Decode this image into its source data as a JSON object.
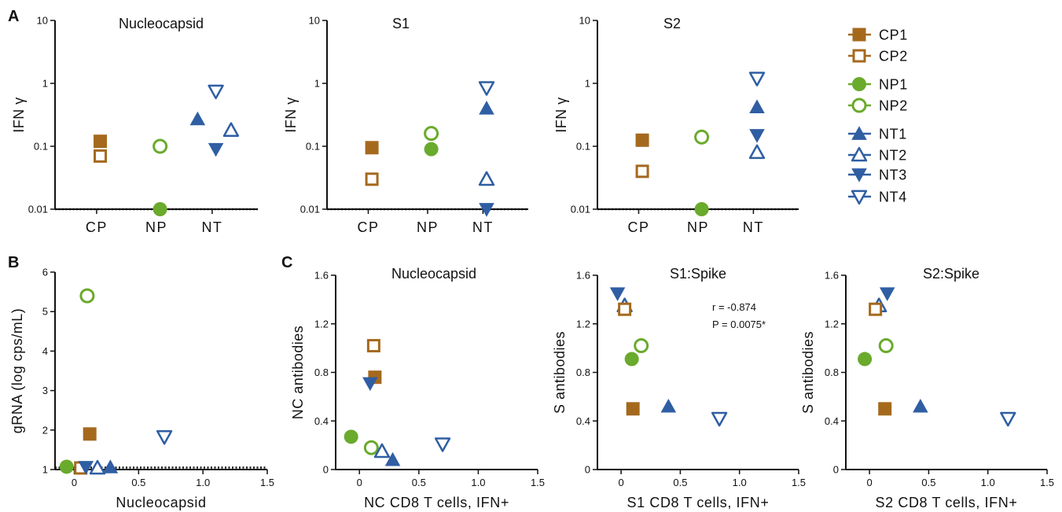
{
  "colors": {
    "CP": "#a5691e",
    "NP": "#6aaa2c",
    "NT": "#2f5ea3",
    "axis": "#111111"
  },
  "panel_letters": [
    "A",
    "B",
    "C"
  ],
  "legend": [
    {
      "label": "CP1",
      "group": "CP",
      "marker": "square",
      "filled": true
    },
    {
      "label": "CP2",
      "group": "CP",
      "marker": "square",
      "filled": false
    },
    {
      "label": "NP1",
      "group": "NP",
      "marker": "circle",
      "filled": true
    },
    {
      "label": "NP2",
      "group": "NP",
      "marker": "circle",
      "filled": false
    },
    {
      "label": "NT1",
      "group": "NT",
      "marker": "triangle-up",
      "filled": true
    },
    {
      "label": "NT2",
      "group": "NT",
      "marker": "triangle-up",
      "filled": false
    },
    {
      "label": "NT3",
      "group": "NT",
      "marker": "triangle-down",
      "filled": true
    },
    {
      "label": "NT4",
      "group": "NT",
      "marker": "triangle-down",
      "filled": false
    }
  ],
  "chart_data": [
    {
      "panel": "A",
      "type": "scatter",
      "title": "Nucleocapsid",
      "ylabel": "IFN γ",
      "yscale": "log",
      "ylim": [
        0.01,
        10
      ],
      "yticks": [
        "0.01",
        "0.1",
        "1",
        "10"
      ],
      "categories": [
        "CP",
        "NP",
        "NT"
      ],
      "threshold": 0.01,
      "points": [
        {
          "id": "CP1",
          "x": 0.06,
          "y": 0.12
        },
        {
          "id": "CP2",
          "x": 0.06,
          "y": 0.07
        },
        {
          "id": "NP2",
          "x": 1.06,
          "y": 0.1
        },
        {
          "id": "NP1",
          "x": 1.06,
          "y": 0.01
        },
        {
          "id": "NT1",
          "x": 1.76,
          "y": 0.27
        },
        {
          "id": "NT4",
          "x": 2.06,
          "y": 0.75
        },
        {
          "id": "NT2",
          "x": 2.31,
          "y": 0.18
        },
        {
          "id": "NT3",
          "x": 2.06,
          "y": 0.09
        }
      ]
    },
    {
      "panel": "A",
      "type": "scatter",
      "title": "S1",
      "ylabel": "IFN γ",
      "yscale": "log",
      "ylim": [
        0.01,
        10
      ],
      "yticks": [
        "0.01",
        "0.1",
        "1",
        "10"
      ],
      "categories": [
        "CP",
        "NP",
        "NT"
      ],
      "threshold": 0.01,
      "points": [
        {
          "id": "CP1",
          "x": 0.06,
          "y": 0.095
        },
        {
          "id": "CP2",
          "x": 0.06,
          "y": 0.03
        },
        {
          "id": "NP2",
          "x": 1.06,
          "y": 0.16
        },
        {
          "id": "NP1",
          "x": 1.06,
          "y": 0.09
        },
        {
          "id": "NT4",
          "x": 2.06,
          "y": 0.85
        },
        {
          "id": "NT1",
          "x": 2.06,
          "y": 0.4
        },
        {
          "id": "NT2",
          "x": 2.06,
          "y": 0.03
        },
        {
          "id": "NT3",
          "x": 2.06,
          "y": 0.01
        }
      ]
    },
    {
      "panel": "A",
      "type": "scatter",
      "title": "S2",
      "ylabel": "IFN γ",
      "yscale": "log",
      "ylim": [
        0.01,
        10
      ],
      "yticks": [
        "0.01",
        "0.1",
        "1",
        "10"
      ],
      "categories": [
        "CP",
        "NP",
        "NT"
      ],
      "threshold": 0.01,
      "points": [
        {
          "id": "CP1",
          "x": 0.06,
          "y": 0.125
        },
        {
          "id": "CP2",
          "x": 0.06,
          "y": 0.04
        },
        {
          "id": "NP2",
          "x": 1.06,
          "y": 0.14
        },
        {
          "id": "NP1",
          "x": 1.06,
          "y": 0.01
        },
        {
          "id": "NT4",
          "x": 2.06,
          "y": 1.2
        },
        {
          "id": "NT1",
          "x": 2.06,
          "y": 0.42
        },
        {
          "id": "NT3",
          "x": 2.06,
          "y": 0.15
        },
        {
          "id": "NT2",
          "x": 2.06,
          "y": 0.08
        }
      ]
    },
    {
      "panel": "B",
      "type": "scatter",
      "title": "",
      "xlabel": "Nucleocapsid",
      "ylabel": "gRNA (log cps/mL)",
      "xlim": [
        -0.15,
        1.5
      ],
      "ylim": [
        1,
        6
      ],
      "xticks": [
        "0",
        "0.5",
        "1.0",
        "1.5"
      ],
      "yticks": [
        "1",
        "2",
        "3",
        "4",
        "5",
        "6"
      ],
      "threshold": 1.05,
      "points": [
        {
          "id": "NP2",
          "x": 0.1,
          "y": 5.4
        },
        {
          "id": "CP1",
          "x": 0.12,
          "y": 1.9
        },
        {
          "id": "NT4",
          "x": 0.7,
          "y": 1.83
        },
        {
          "id": "NP1",
          "x": -0.06,
          "y": 1.07
        },
        {
          "id": "CP2",
          "x": 0.05,
          "y": 1.04
        },
        {
          "id": "NT3",
          "x": 0.09,
          "y": 1.06
        },
        {
          "id": "NT2",
          "x": 0.18,
          "y": 1.04
        },
        {
          "id": "NT1",
          "x": 0.28,
          "y": 1.06
        }
      ]
    },
    {
      "panel": "C",
      "type": "scatter",
      "title": "Nucleocapsid",
      "xlabel": "NC CD8 T cells, IFN+",
      "ylabel": "NC antibodies",
      "xlim": [
        -0.2,
        1.5
      ],
      "ylim": [
        0,
        1.6
      ],
      "xticks": [
        "0",
        "0.5",
        "1.0",
        "1.5"
      ],
      "yticks": [
        "0",
        "0.4",
        "0.8",
        "1.2",
        "1.6"
      ],
      "points": [
        {
          "id": "CP2",
          "x": 0.12,
          "y": 1.02
        },
        {
          "id": "CP1",
          "x": 0.13,
          "y": 0.76
        },
        {
          "id": "NT3",
          "x": 0.09,
          "y": 0.71
        },
        {
          "id": "NP1",
          "x": -0.07,
          "y": 0.27
        },
        {
          "id": "NP2",
          "x": 0.1,
          "y": 0.18
        },
        {
          "id": "NT2",
          "x": 0.19,
          "y": 0.15
        },
        {
          "id": "NT1",
          "x": 0.28,
          "y": 0.08
        },
        {
          "id": "NT4",
          "x": 0.7,
          "y": 0.21
        }
      ]
    },
    {
      "panel": "C",
      "type": "scatter",
      "title": "S1:Spike",
      "xlabel": "S1 CD8 T cells, IFN+",
      "ylabel": "S antibodies",
      "xlim": [
        -0.2,
        1.5
      ],
      "ylim": [
        0,
        1.6
      ],
      "xticks": [
        "0",
        "0.5",
        "1.0",
        "1.5"
      ],
      "yticks": [
        "0",
        "0.4",
        "0.8",
        "1.2",
        "1.6"
      ],
      "annotation": [
        "r = -0.874",
        "P = 0.0075*"
      ],
      "points": [
        {
          "id": "NT3",
          "x": -0.03,
          "y": 1.45
        },
        {
          "id": "NT2",
          "x": 0.03,
          "y": 1.35
        },
        {
          "id": "CP2",
          "x": 0.03,
          "y": 1.32
        },
        {
          "id": "NP2",
          "x": 0.17,
          "y": 1.02
        },
        {
          "id": "NP1",
          "x": 0.09,
          "y": 0.91
        },
        {
          "id": "CP1",
          "x": 0.1,
          "y": 0.5
        },
        {
          "id": "NT1",
          "x": 0.4,
          "y": 0.52
        },
        {
          "id": "NT4",
          "x": 0.83,
          "y": 0.42
        }
      ]
    },
    {
      "panel": "C",
      "type": "scatter",
      "title": "S2:Spike",
      "xlabel": "S2 CD8 T cells, IFN+",
      "ylabel": "S antibodies",
      "xlim": [
        -0.2,
        1.5
      ],
      "ylim": [
        0,
        1.6
      ],
      "xticks": [
        "0",
        "0.5",
        "1.0",
        "1.5"
      ],
      "yticks": [
        "0",
        "0.4",
        "0.8",
        "1.2",
        "1.6"
      ],
      "points": [
        {
          "id": "NT3",
          "x": 0.15,
          "y": 1.45
        },
        {
          "id": "NT2",
          "x": 0.08,
          "y": 1.35
        },
        {
          "id": "CP2",
          "x": 0.05,
          "y": 1.32
        },
        {
          "id": "NP2",
          "x": 0.14,
          "y": 1.02
        },
        {
          "id": "NP1",
          "x": -0.04,
          "y": 0.91
        },
        {
          "id": "CP1",
          "x": 0.13,
          "y": 0.5
        },
        {
          "id": "NT1",
          "x": 0.43,
          "y": 0.52
        },
        {
          "id": "NT4",
          "x": 1.17,
          "y": 0.42
        }
      ]
    }
  ]
}
